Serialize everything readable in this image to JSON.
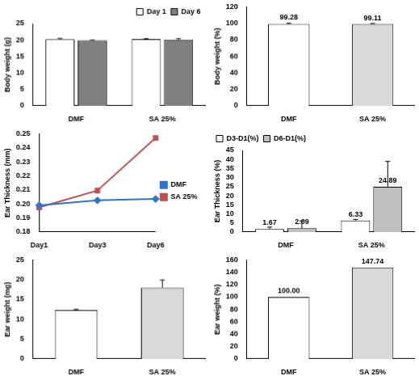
{
  "chart_data": [
    {
      "type": "bar",
      "y_label": "Body weight (g)",
      "categories": [
        "DMF",
        "SA 25%"
      ],
      "series": [
        {
          "name": "Day 1",
          "color": "#ffffff",
          "values": [
            20.2,
            20.3
          ],
          "errors": [
            0.3,
            0.1
          ]
        },
        {
          "name": "Day 6",
          "color": "#808080",
          "values": [
            19.9,
            20.1
          ],
          "errors": [
            0.1,
            0.3
          ]
        }
      ],
      "ylim": [
        0,
        25
      ],
      "yticks": [
        0,
        5,
        10,
        15,
        20,
        25
      ],
      "grid": false,
      "legend": "top-right"
    },
    {
      "type": "bar",
      "y_label": "Body weight (%)",
      "categories": [
        "DMF",
        "SA 25%"
      ],
      "values": [
        99.28,
        99.11
      ],
      "errors": [
        0.8,
        0.6
      ],
      "colors": [
        "#ffffff",
        "#d9d9d9"
      ],
      "ylim": [
        0,
        120
      ],
      "yticks": [
        0,
        20,
        40,
        60,
        80,
        100,
        120
      ],
      "grid": false,
      "data_labels": true
    },
    {
      "type": "line",
      "y_label": "Ear Thickness (mm)",
      "categories": [
        "Day1",
        "Day3",
        "Day6"
      ],
      "series": [
        {
          "name": "DMF",
          "color": "#2e75c9",
          "marker": "diamond",
          "values": [
            0.199,
            0.2025,
            0.2035
          ]
        },
        {
          "name": "SA 25%",
          "color": "#c0504d",
          "marker": "square",
          "values": [
            0.1975,
            0.2095,
            0.247
          ]
        }
      ],
      "ylim": [
        0.18,
        0.25
      ],
      "yticks": [
        0.18,
        0.19,
        {
          "value": 0.2,
          "label": "0.20"
        },
        0.21,
        0.22,
        0.23,
        0.24,
        0.25
      ],
      "grid": false,
      "legend": "right"
    },
    {
      "type": "bar",
      "y_label": "Ear Thickness (%)",
      "categories": [
        "DMF",
        "SA 25%"
      ],
      "series": [
        {
          "name": "D3-D1(%)",
          "color": "#ffffff",
          "values": [
            1.67,
            6.33
          ],
          "errors": [
            1.0,
            0.6
          ]
        },
        {
          "name": "D6-D1(%)",
          "color": "#bfbfbf",
          "values": [
            2.09,
            24.89
          ],
          "errors": [
            4.0,
            14.0
          ]
        }
      ],
      "ylim": [
        0,
        45
      ],
      "yticks": [
        0,
        5,
        10,
        15,
        20,
        25,
        30,
        35,
        40,
        45
      ],
      "grid": false,
      "legend": "top-left",
      "data_labels": true
    },
    {
      "type": "bar",
      "y_label": "Ear weight (mg)",
      "categories": [
        "DMF",
        "SA 25%"
      ],
      "values": [
        12.3,
        18.0
      ],
      "errors": [
        0.2,
        1.9
      ],
      "colors": [
        "#ffffff",
        "#d9d9d9"
      ],
      "ylim": [
        0,
        25
      ],
      "yticks": [
        0,
        5,
        10,
        15,
        20,
        25
      ],
      "grid": false
    },
    {
      "type": "bar",
      "y_label": "Ear weight (%)",
      "categories": [
        "DMF",
        "SA 25%"
      ],
      "values": [
        100,
        147.74
      ],
      "value_labels": [
        "100.00",
        "147.74"
      ],
      "colors": [
        "#ffffff",
        "#d9d9d9"
      ],
      "ylim": [
        0,
        160
      ],
      "yticks": [
        0,
        20,
        40,
        60,
        80,
        100,
        120,
        140,
        160
      ],
      "grid": false,
      "data_labels": true
    }
  ]
}
